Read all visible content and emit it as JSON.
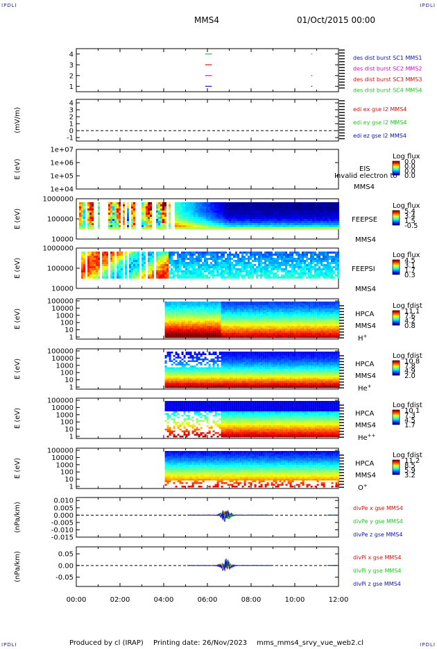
{
  "header": {
    "corner_tag": "IPDLI",
    "spacecraft": "MMS4",
    "date": "01/Oct/2015 00:00"
  },
  "footer": {
    "producer": "Produced by cl (IRAP)",
    "printing": "Printing date: 26/Nov/2023",
    "script": "mms_mms4_srvy_vue_web2.cl"
  },
  "time_axis": {
    "ticks": [
      "00:00",
      "02:00",
      "04:00",
      "06:00",
      "08:00",
      "10:00",
      "12:00"
    ]
  },
  "colors": {
    "red": "#d81010",
    "green": "#1ec81e",
    "blue": "#1010c0",
    "magenta": "#d010d0"
  },
  "chart_data": [
    {
      "id": "burst",
      "type": "line",
      "ylim": [
        0.5,
        4.5
      ],
      "yticks": [
        "1",
        "2",
        "3",
        "4"
      ],
      "series": [
        {
          "name": "des dist burst SC1 MMS1",
          "color": "#1010c0",
          "level": 1,
          "segments": [
            [
              5.9,
              6.2
            ],
            [
              10.75,
              10.8
            ]
          ]
        },
        {
          "name": "des dist burst SC2 MMS2",
          "color": "#d010d0",
          "level": 2,
          "segments": [
            [
              5.9,
              6.2
            ],
            [
              10.75,
              10.8
            ]
          ]
        },
        {
          "name": "des dist burst SC3 MMS3",
          "color": "#d81010",
          "level": 3,
          "segments": [
            [
              5.9,
              6.2
            ]
          ]
        },
        {
          "name": "des dist burst SC4 MMS4",
          "color": "#1ec81e",
          "level": 4,
          "segments": [
            [
              5.9,
              6.2
            ],
            [
              10.75,
              10.8
            ]
          ]
        }
      ]
    },
    {
      "id": "edi",
      "type": "line",
      "ylabel": "(mV/m)",
      "ylim": [
        -1.5,
        4.5
      ],
      "yticks": [
        "-1",
        "0",
        "1",
        "2",
        "3",
        "4"
      ],
      "dashed_zero": true,
      "series": [
        {
          "name": "edi ex gse l2 MMS4",
          "color": "#d81010"
        },
        {
          "name": "edi ey gse l2 MMS4",
          "color": "#1ec81e"
        },
        {
          "name": "edi ez gse l2 MMS4",
          "color": "#1010c0"
        }
      ]
    },
    {
      "id": "eis",
      "type": "heatmap",
      "ylabel": "E (eV)",
      "yticks": [
        "1e+07",
        "1e+06",
        "1e+05",
        "1e+04"
      ],
      "instrument": "EIS",
      "spacecraft": "MMS4",
      "note": "Invalid electron to",
      "colorbar": {
        "title": "Log flux",
        "ticks": [
          "0.0",
          "0.0",
          "0.0",
          "0.0"
        ]
      }
    },
    {
      "id": "feepse",
      "type": "heatmap",
      "ylabel": "E (eV)",
      "yticks": [
        "1000000",
        "100000",
        "10000"
      ],
      "instrument": "FEEPSE",
      "spacecraft": "MMS4",
      "colorbar": {
        "title": "Log flux",
        "ticks": [
          "5.4",
          "3.4",
          "1.5",
          "-0.5"
        ]
      }
    },
    {
      "id": "feepsi",
      "type": "heatmap",
      "ylabel": "E (eV)",
      "yticks": [
        "1000000",
        "100000",
        "10000"
      ],
      "instrument": "FEEPSI",
      "spacecraft": "MMS4",
      "colorbar": {
        "title": "Log flux",
        "ticks": [
          "4.5",
          "3.1",
          "1.7",
          "0.3"
        ]
      }
    },
    {
      "id": "hpca-h",
      "type": "heatmap",
      "ylabel": "E (eV)",
      "yticks": [
        "100000",
        "10000",
        "1000",
        "100",
        "10",
        "1"
      ],
      "instrument": "HPCA",
      "spacecraft": "MMS4",
      "species": "H",
      "species_sup": "+",
      "data_start_hour": 4.05,
      "colorbar": {
        "title": "Log fdist",
        "ticks": [
          "11.1",
          "7.6",
          "4.2",
          "0.8"
        ]
      }
    },
    {
      "id": "hpca-he",
      "type": "heatmap",
      "ylabel": "E (eV)",
      "yticks": [
        "100000",
        "10000",
        "1000",
        "100",
        "10",
        "1"
      ],
      "instrument": "HPCA",
      "spacecraft": "MMS4",
      "species": "He",
      "species_sup": "+",
      "data_start_hour": 4.05,
      "colorbar": {
        "title": "Log fdist",
        "ticks": [
          "10.8",
          "7.8",
          "4.9",
          "2.0"
        ]
      }
    },
    {
      "id": "hpca-he2",
      "type": "heatmap",
      "ylabel": "E (eV)",
      "yticks": [
        "100000",
        "10000",
        "1000",
        "100",
        "10",
        "1"
      ],
      "instrument": "HPCA",
      "spacecraft": "MMS4",
      "species": "He",
      "species_sup": "++",
      "data_start_hour": 4.05,
      "colorbar": {
        "title": "Log fdist",
        "ticks": [
          "10.1",
          "7.3",
          "4.5",
          "1.7"
        ]
      }
    },
    {
      "id": "hpca-o",
      "type": "heatmap",
      "ylabel": "E (eV)",
      "yticks": [
        "100000",
        "10000",
        "1000",
        "100",
        "10",
        "1"
      ],
      "instrument": "HPCA",
      "spacecraft": "MMS4",
      "species": "O",
      "species_sup": "+",
      "data_start_hour": 4.05,
      "colorbar": {
        "title": "Log fdist",
        "ticks": [
          "11.2",
          "8.5",
          "5.9",
          "3.2"
        ]
      }
    },
    {
      "id": "divpe",
      "type": "line",
      "ylabel": "(nPa/km)",
      "ylim": [
        -0.015,
        0.012
      ],
      "yticks": [
        "0.010",
        "0.005",
        "0.000",
        "-0.005",
        "-0.010",
        "-0.015"
      ],
      "ytick_values": [
        0.01,
        0.005,
        0,
        -0.005,
        -0.01,
        -0.015
      ],
      "dashed_zero": true,
      "active_spans": [
        [
          5.1,
          9.0
        ],
        [
          11.5,
          12.0
        ]
      ],
      "spike_hour": 6.85,
      "series": [
        {
          "name": "divPe x gse MMS4",
          "color": "#d81010"
        },
        {
          "name": "divPe y gse MMS4",
          "color": "#1ec81e"
        },
        {
          "name": "divPe z gse MMS4",
          "color": "#1010c0"
        }
      ]
    },
    {
      "id": "divpi",
      "type": "line",
      "ylabel": "(nPa/km)",
      "ylim": [
        -0.09,
        0.08
      ],
      "yticks": [
        "0.05",
        "0.00",
        "-0.05"
      ],
      "ytick_values": [
        0.05,
        0,
        -0.05
      ],
      "dashed_zero": true,
      "active_spans": [
        [
          5.1,
          9.0
        ],
        [
          11.5,
          12.0
        ]
      ],
      "spike_hour": 6.85,
      "series": [
        {
          "name": "divPi x gse MMS4",
          "color": "#d81010"
        },
        {
          "name": "divPi y gse MMS4",
          "color": "#1ec81e"
        },
        {
          "name": "divPi z gse MMS4",
          "color": "#1010c0"
        }
      ]
    }
  ]
}
